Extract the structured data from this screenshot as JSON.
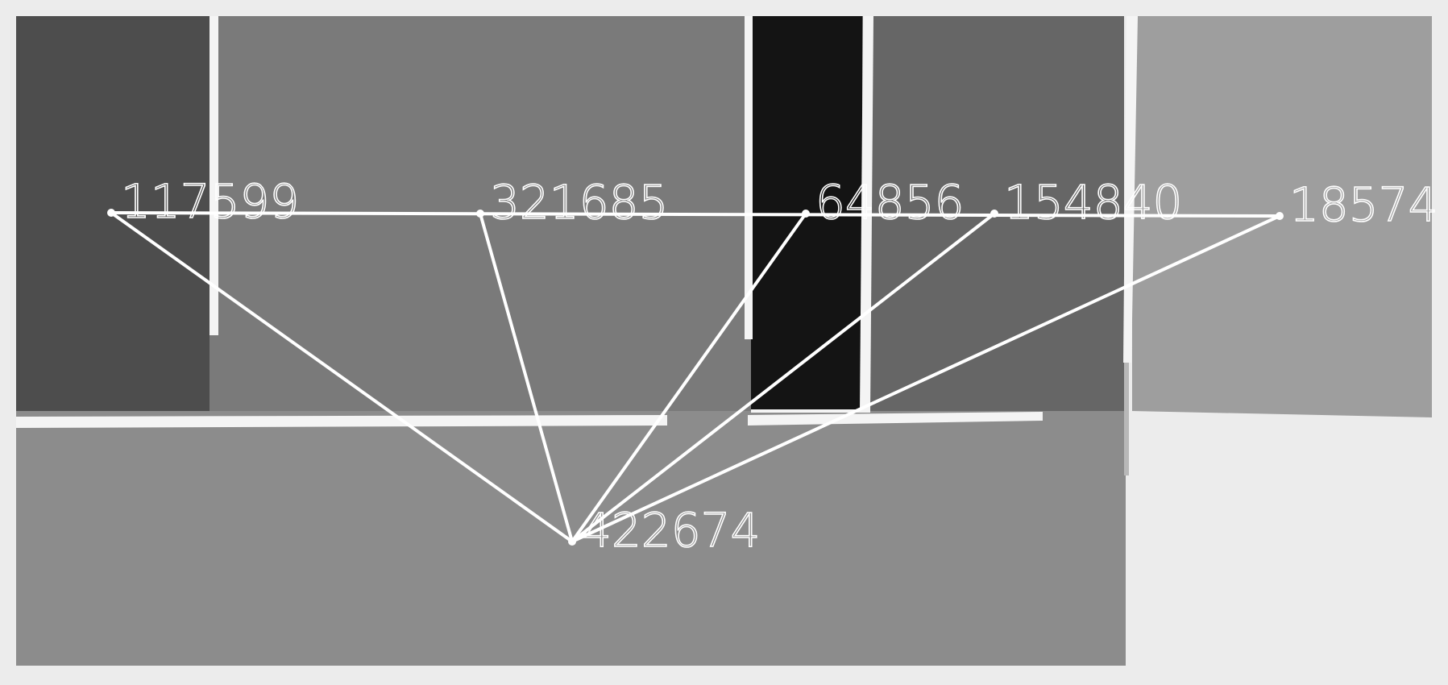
{
  "colors": {
    "background": "#ececec",
    "line": "#ffffff",
    "region_dark": "#4d4d4d",
    "region_mid": "#7a7a7a",
    "region_black": "#141414",
    "region_slate": "#666666",
    "region_light": "#9e9e9e",
    "region_bottom": "#8c8c8c"
  },
  "nodes": [
    {
      "id": "n1",
      "label": "117599"
    },
    {
      "id": "n2",
      "label": "321685"
    },
    {
      "id": "n3",
      "label": "64856"
    },
    {
      "id": "n4",
      "label": "154840"
    },
    {
      "id": "n5",
      "label": "18574"
    },
    {
      "id": "hub",
      "label": "422674"
    }
  ],
  "edges": [
    [
      "n1",
      "n5"
    ],
    [
      "n1",
      "hub"
    ],
    [
      "n2",
      "hub"
    ],
    [
      "n3",
      "hub"
    ],
    [
      "n4",
      "hub"
    ],
    [
      "n5",
      "hub"
    ]
  ]
}
